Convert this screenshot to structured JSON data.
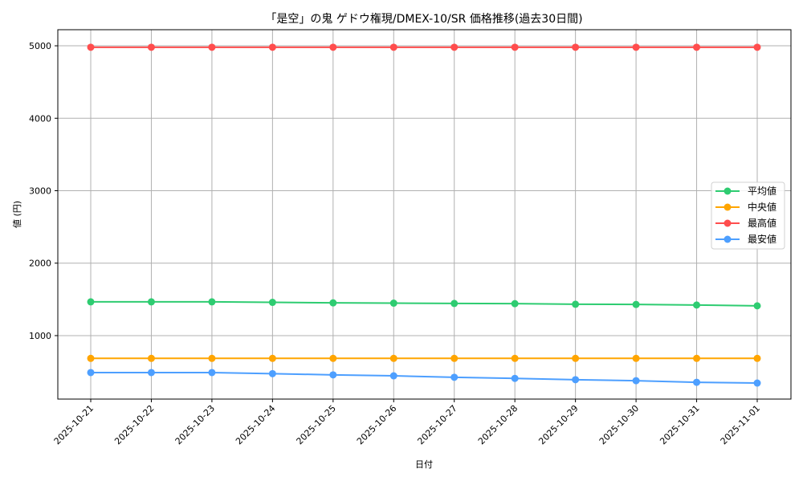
{
  "chart_data": {
    "type": "line",
    "title": "「是空」の鬼 ゲドウ権現/DMEX-10/SR 価格推移(過去30日間)",
    "xlabel": "日付",
    "ylabel": "値 (円)",
    "x": [
      "2025-10-21",
      "2025-10-22",
      "2025-10-23",
      "2025-10-24",
      "2025-10-25",
      "2025-10-26",
      "2025-10-27",
      "2025-10-28",
      "2025-10-29",
      "2025-10-30",
      "2025-10-31",
      "2025-11-01"
    ],
    "yticks": [
      1000,
      2000,
      3000,
      4000,
      5000
    ],
    "ylim": [
      124,
      5222
    ],
    "grid": true,
    "legend_position": "center right",
    "series": [
      {
        "name": "平均値",
        "color": "#2ecc71",
        "values": [
          1466,
          1466,
          1466,
          1459,
          1452,
          1448,
          1444,
          1441,
          1433,
          1430,
          1422,
          1411
        ]
      },
      {
        "name": "中央値",
        "color": "#ffa500",
        "values": [
          686,
          686,
          686,
          686,
          686,
          686,
          686,
          686,
          686,
          686,
          686,
          686
        ]
      },
      {
        "name": "最高値",
        "color": "#ff4d4d",
        "values": [
          4980,
          4980,
          4980,
          4980,
          4980,
          4980,
          4980,
          4980,
          4980,
          4980,
          4980,
          4980
        ]
      },
      {
        "name": "最安値",
        "color": "#4d9fff",
        "values": [
          490,
          490,
          490,
          475,
          458,
          445,
          425,
          410,
          392,
          378,
          356,
          345
        ]
      }
    ]
  }
}
